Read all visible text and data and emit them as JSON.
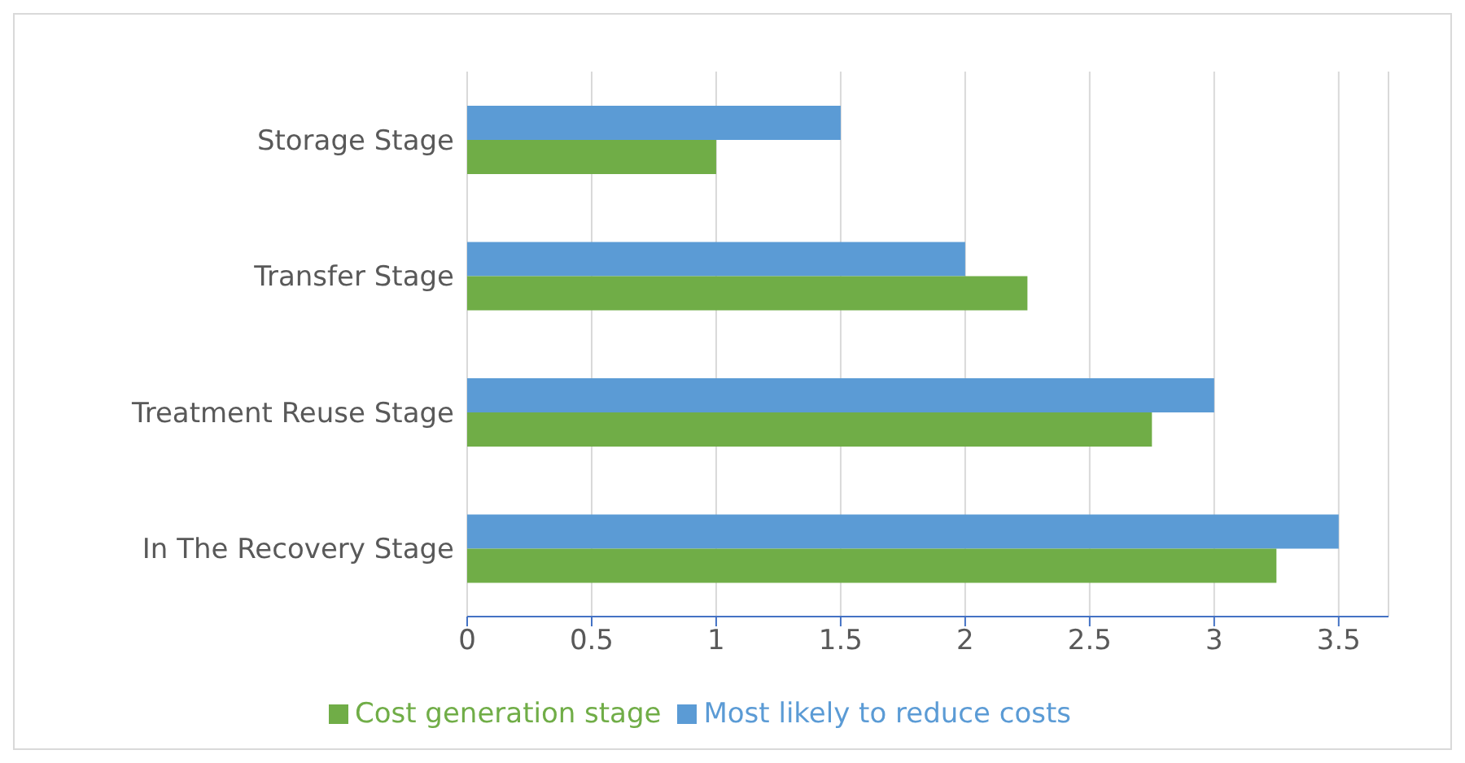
{
  "chart_data": {
    "type": "bar",
    "orientation": "horizontal",
    "categories": [
      "Storage Stage",
      "Transfer Stage",
      "Treatment Reuse Stage",
      "In The Recovery Stage"
    ],
    "series": [
      {
        "name": "Most likely to reduce costs",
        "color": "#5b9bd5",
        "values": [
          1.5,
          2,
          3,
          3.5
        ]
      },
      {
        "name": "Cost generation stage",
        "color": "#70ad47",
        "values": [
          1,
          2.25,
          2.75,
          3.25
        ]
      }
    ],
    "xlim": [
      0,
      3.7
    ],
    "xticks": [
      0,
      0.5,
      1,
      1.5,
      2,
      2.5,
      3,
      3.5
    ],
    "grid": "x",
    "legend": "bottom"
  }
}
